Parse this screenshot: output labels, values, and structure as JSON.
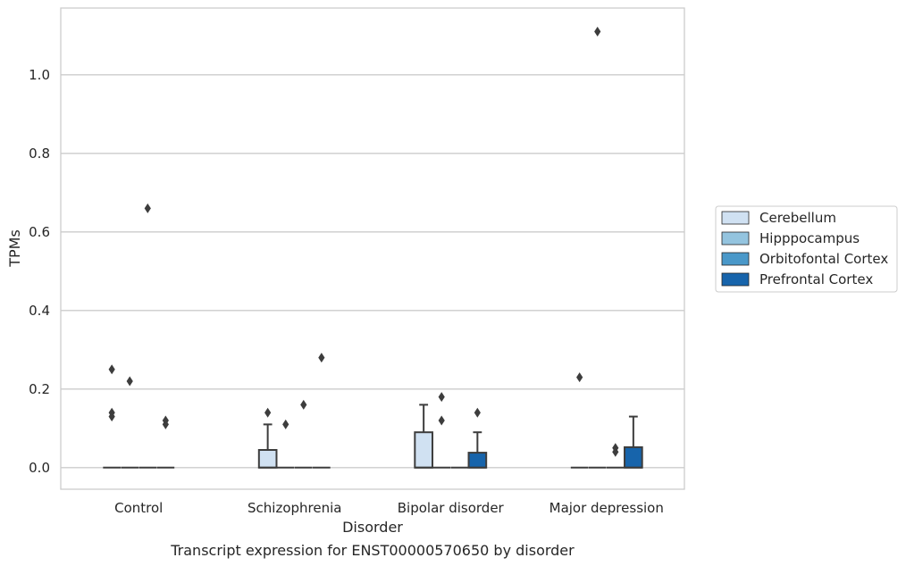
{
  "chart_data": {
    "type": "box",
    "caption": "Transcript expression for ENST00000570650 by disorder",
    "xlabel": "Disorder",
    "ylabel": "TPMs",
    "ylim": [
      -0.055,
      1.17
    ],
    "yticks": [
      "0.0",
      "0.2",
      "0.4",
      "0.6",
      "0.8",
      "1.0"
    ],
    "grid": true,
    "legend_position": "right",
    "categories": [
      "Control",
      "Schizophrenia",
      "Bipolar disorder",
      "Major depression"
    ],
    "series": [
      {
        "name": "Cerebellum",
        "color": "#d0e1f2",
        "boxes": [
          {
            "q1": 0,
            "median": 0,
            "q3": 0,
            "whisker_low": 0,
            "whisker_high": 0,
            "outliers": [
              0.25,
              0.14,
              0.13
            ]
          },
          {
            "q1": 0,
            "median": 0,
            "q3": 0.045,
            "whisker_low": 0,
            "whisker_high": 0.11,
            "outliers": [
              0.14
            ]
          },
          {
            "q1": 0,
            "median": 0,
            "q3": 0.09,
            "whisker_low": 0,
            "whisker_high": 0.16,
            "outliers": []
          },
          {
            "q1": 0,
            "median": 0,
            "q3": 0,
            "whisker_low": 0,
            "whisker_high": 0,
            "outliers": [
              0.23
            ]
          }
        ]
      },
      {
        "name": "Hipppocampus",
        "color": "#94c4df",
        "boxes": [
          {
            "q1": 0,
            "median": 0,
            "q3": 0,
            "whisker_low": 0,
            "whisker_high": 0,
            "outliers": [
              0.22
            ]
          },
          {
            "q1": 0,
            "median": 0,
            "q3": 0,
            "whisker_low": 0,
            "whisker_high": 0,
            "outliers": [
              0.11
            ]
          },
          {
            "q1": 0,
            "median": 0,
            "q3": 0,
            "whisker_low": 0,
            "whisker_high": 0,
            "outliers": [
              0.18,
              0.12
            ]
          },
          {
            "q1": 0,
            "median": 0,
            "q3": 0,
            "whisker_low": 0,
            "whisker_high": 0,
            "outliers": [
              1.11
            ]
          }
        ]
      },
      {
        "name": "Orbitofontal Cortex",
        "color": "#4a98c9",
        "boxes": [
          {
            "q1": 0,
            "median": 0,
            "q3": 0,
            "whisker_low": 0,
            "whisker_high": 0,
            "outliers": [
              0.66
            ]
          },
          {
            "q1": 0,
            "median": 0,
            "q3": 0,
            "whisker_low": 0,
            "whisker_high": 0,
            "outliers": [
              0.16
            ]
          },
          {
            "q1": 0,
            "median": 0,
            "q3": 0,
            "whisker_low": 0,
            "whisker_high": 0,
            "outliers": []
          },
          {
            "q1": 0,
            "median": 0,
            "q3": 0,
            "whisker_low": 0,
            "whisker_high": 0,
            "outliers": [
              0.05,
              0.04
            ]
          }
        ]
      },
      {
        "name": "Prefrontal Cortex",
        "color": "#1764ab",
        "boxes": [
          {
            "q1": 0,
            "median": 0,
            "q3": 0,
            "whisker_low": 0,
            "whisker_high": 0,
            "outliers": [
              0.12,
              0.11
            ]
          },
          {
            "q1": 0,
            "median": 0,
            "q3": 0,
            "whisker_low": 0,
            "whisker_high": 0,
            "outliers": [
              0.28
            ]
          },
          {
            "q1": 0,
            "median": 0,
            "q3": 0.038,
            "whisker_low": 0,
            "whisker_high": 0.09,
            "outliers": [
              0.14
            ]
          },
          {
            "q1": 0,
            "median": 0,
            "q3": 0.052,
            "whisker_low": 0,
            "whisker_high": 0.13,
            "outliers": []
          }
        ]
      }
    ]
  }
}
